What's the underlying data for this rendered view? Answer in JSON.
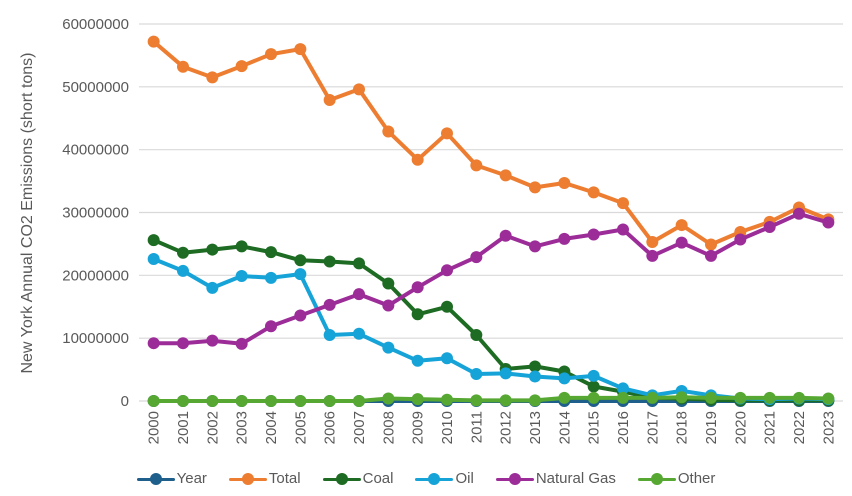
{
  "chart_data": {
    "type": "line",
    "title": "",
    "xlabel": "",
    "ylabel": "New York Annual CO2 Emissions (short tons)",
    "ylim": [
      0,
      60000000
    ],
    "yticks": [
      "0",
      "10000000",
      "20000000",
      "30000000",
      "40000000",
      "50000000",
      "60000000"
    ],
    "ytick_values": [
      0,
      10000000,
      20000000,
      30000000,
      40000000,
      50000000,
      60000000
    ],
    "grid": "horizontal",
    "legend_position": "bottom",
    "categories": [
      "2000",
      "2001",
      "2002",
      "2003",
      "2004",
      "2005",
      "2006",
      "2007",
      "2008",
      "2009",
      "2010",
      "2011",
      "2012",
      "2013",
      "2014",
      "2015",
      "2016",
      "2017",
      "2018",
      "2019",
      "2020",
      "2021",
      "2022",
      "2023"
    ],
    "series": [
      {
        "name": "Year",
        "color": "#1f5f8b",
        "values": [
          2000,
          2001,
          2002,
          2003,
          2004,
          2005,
          2006,
          2007,
          2008,
          2009,
          2010,
          2011,
          2012,
          2013,
          2014,
          2015,
          2016,
          2017,
          2018,
          2019,
          2020,
          2021,
          2022,
          2023
        ]
      },
      {
        "name": "Total",
        "color": "#ed7d31",
        "values": [
          57200000,
          53200000,
          51500000,
          53300000,
          55200000,
          56000000,
          47900000,
          49600000,
          42900000,
          38400000,
          42600000,
          37500000,
          35900000,
          34000000,
          34700000,
          33200000,
          31500000,
          25300000,
          28000000,
          24900000,
          26900000,
          28500000,
          30800000,
          28900000
        ]
      },
      {
        "name": "Coal",
        "color": "#1e6b23",
        "values": [
          25600000,
          23600000,
          24100000,
          24600000,
          23700000,
          22400000,
          22200000,
          21900000,
          18700000,
          13800000,
          15000000,
          10500000,
          5100000,
          5500000,
          4700000,
          2300000,
          1500000,
          500000,
          400000,
          200000,
          100000,
          100000,
          100000,
          100000
        ]
      },
      {
        "name": "Oil",
        "color": "#16a3d8",
        "values": [
          22600000,
          20700000,
          18000000,
          19900000,
          19600000,
          20200000,
          10500000,
          10700000,
          8500000,
          6400000,
          6800000,
          4300000,
          4400000,
          3900000,
          3600000,
          4000000,
          2000000,
          900000,
          1600000,
          900000,
          400000,
          300000,
          400000,
          300000
        ]
      },
      {
        "name": "Natural Gas",
        "color": "#9c2d98",
        "values": [
          9200000,
          9200000,
          9600000,
          9100000,
          11900000,
          13600000,
          15300000,
          17000000,
          15200000,
          18100000,
          20800000,
          22900000,
          26300000,
          24600000,
          25800000,
          26500000,
          27300000,
          23100000,
          25200000,
          23100000,
          25700000,
          27700000,
          29800000,
          28400000
        ]
      },
      {
        "name": "Other",
        "color": "#56a832",
        "values": [
          0,
          0,
          0,
          0,
          0,
          0,
          0,
          0,
          400000,
          300000,
          200000,
          100000,
          100000,
          100000,
          500000,
          500000,
          500000,
          500000,
          600000,
          500000,
          500000,
          500000,
          500000,
          400000
        ]
      }
    ]
  }
}
